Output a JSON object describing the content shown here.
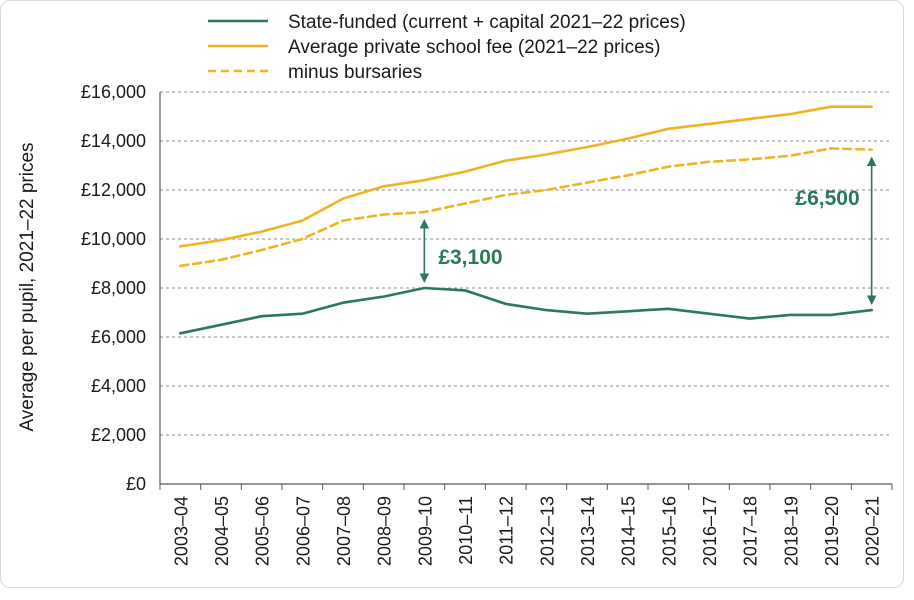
{
  "chart_data": {
    "type": "line",
    "title": "",
    "xlabel": "",
    "ylabel": "Average per pupil, 2021–22 prices",
    "ylim": [
      0,
      16000
    ],
    "y_ticks": [
      "£0",
      "£2,000",
      "£4,000",
      "£6,000",
      "£8,000",
      "£10,000",
      "£12,000",
      "£14,000",
      "£16,000"
    ],
    "y_tick_values": [
      0,
      2000,
      4000,
      6000,
      8000,
      10000,
      12000,
      14000,
      16000
    ],
    "grid": "horizontal dashed",
    "legend_position": "top",
    "x": [
      "2003–04",
      "2004–05",
      "2005–06",
      "2006–07",
      "2007–08",
      "2008–09",
      "2009–10",
      "2010–11",
      "2011–12",
      "2012–13",
      "2013–14",
      "2014–15",
      "2015–16",
      "2016–17",
      "2017–18",
      "2018–19",
      "2019–20",
      "2020–21"
    ],
    "series": [
      {
        "name": "State-funded (current + capital 2021–22 prices)",
        "color": "#2a7a55",
        "style": "solid",
        "values": [
          6150,
          6500,
          6850,
          6950,
          7400,
          7650,
          8000,
          7900,
          7350,
          7100,
          6950,
          7050,
          7150,
          6950,
          6750,
          6900,
          6900,
          7100
        ]
      },
      {
        "name": "Average private school fee (2021–22 prices)",
        "color": "#f0b323",
        "style": "solid",
        "values": [
          9700,
          9950,
          10300,
          10750,
          11650,
          12150,
          12400,
          12750,
          13200,
          13450,
          13750,
          14100,
          14500,
          14700,
          14900,
          15100,
          15400,
          15400
        ]
      },
      {
        "name": "minus bursaries",
        "color": "#f0b323",
        "style": "dashed",
        "values": [
          8900,
          9150,
          9550,
          10000,
          10750,
          11000,
          11100,
          11450,
          11800,
          12000,
          12300,
          12600,
          12950,
          13150,
          13250,
          13400,
          13700,
          13650
        ]
      }
    ],
    "annotations": [
      {
        "label": "£3,100",
        "x": "2009–10",
        "from": 8000,
        "to": 11100,
        "color": "#2a7a55"
      },
      {
        "label": "£6,500",
        "x": "2020–21",
        "from": 7100,
        "to": 13650,
        "color": "#2a7a55"
      }
    ]
  }
}
